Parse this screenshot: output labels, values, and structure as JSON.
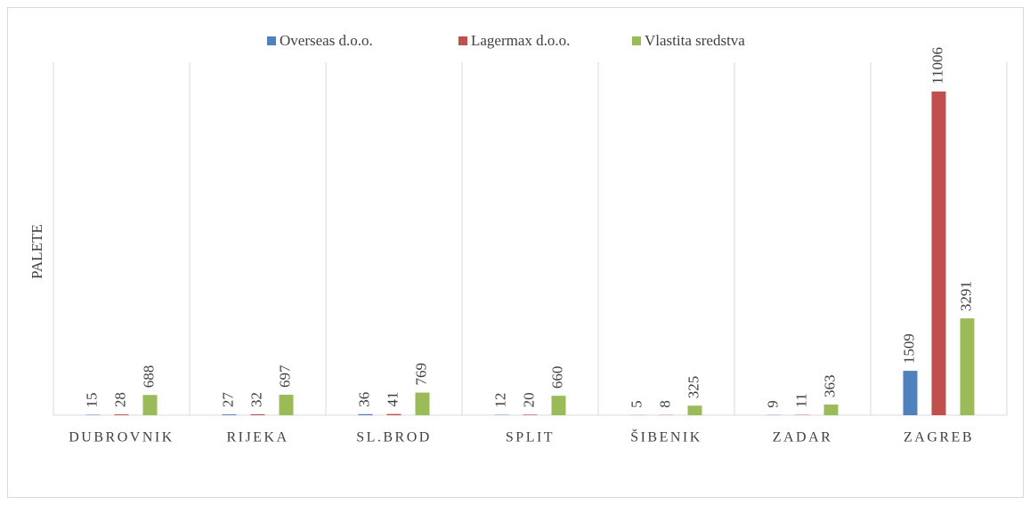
{
  "chart_data": {
    "type": "bar",
    "y_label": "PALETE",
    "categories": [
      "DUBROVNIK",
      "RIJEKA",
      "SL.BROD",
      "SPLIT",
      "ŠIBENIK",
      "ZADAR",
      "ZAGREB"
    ],
    "series": [
      {
        "name": "Overseas d.o.o.",
        "color": "#4f81bd",
        "values": [
          15,
          27,
          36,
          12,
          5,
          9,
          1509
        ]
      },
      {
        "name": "Lagermax d.o.o.",
        "color": "#c0504d",
        "values": [
          28,
          32,
          41,
          20,
          8,
          11,
          11006
        ]
      },
      {
        "name": "Vlastita sredstva",
        "color": "#9bbb59",
        "values": [
          688,
          697,
          769,
          660,
          325,
          363,
          3291
        ]
      }
    ],
    "ylim": [
      0,
      12000
    ]
  }
}
